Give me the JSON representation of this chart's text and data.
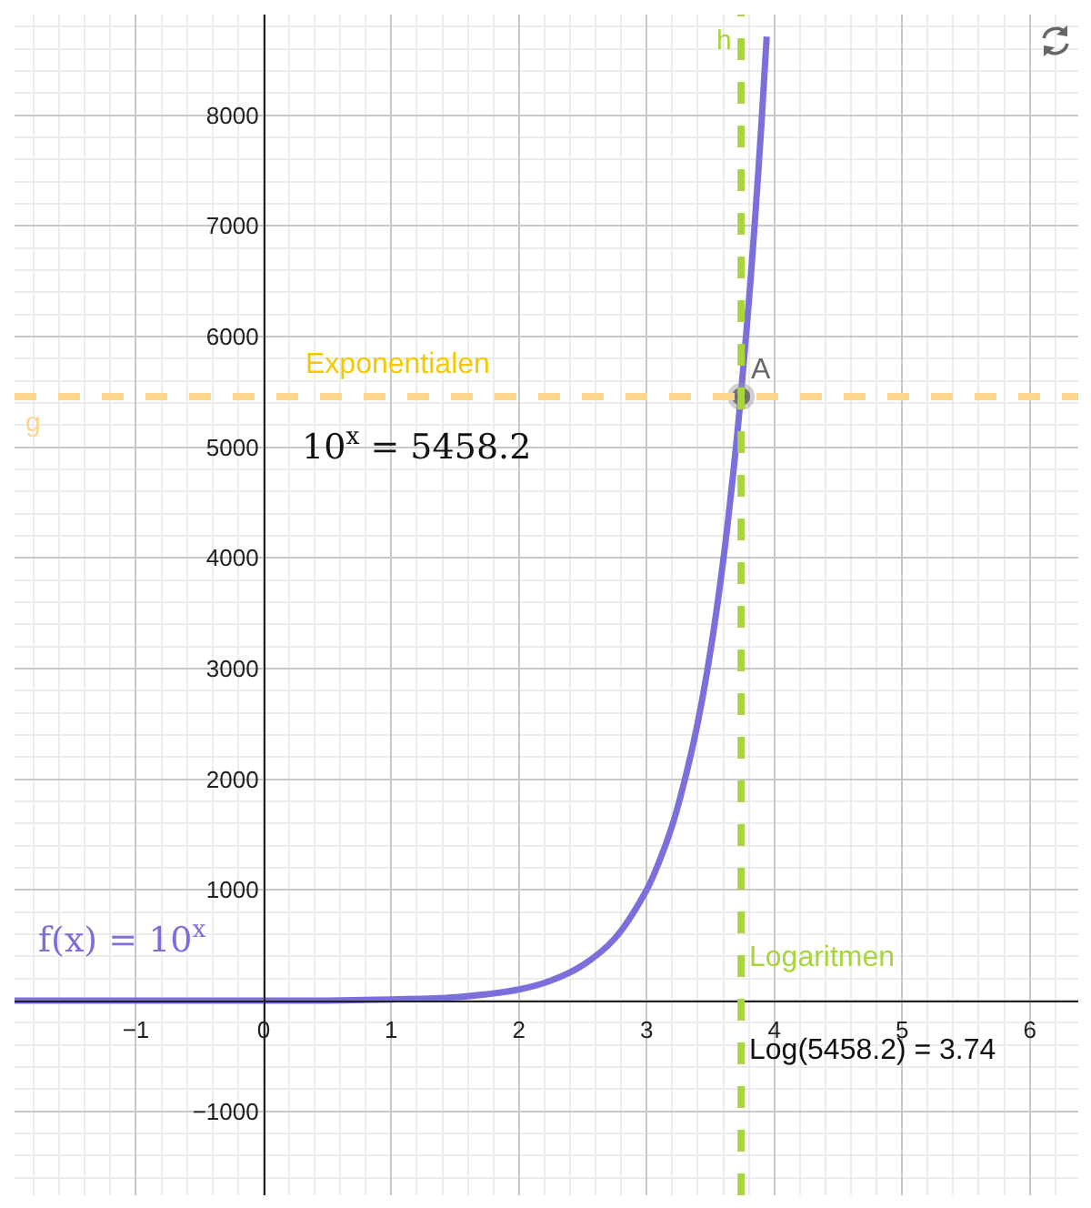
{
  "chart_data": {
    "type": "line",
    "x": [
      -1.95,
      -1,
      0,
      0.5,
      1,
      1.5,
      2,
      2.25,
      2.5,
      2.75,
      3,
      3.1,
      3.2,
      3.3,
      3.4,
      3.5,
      3.6,
      3.7,
      3.74,
      3.8,
      3.85,
      3.9,
      3.94
    ],
    "series": [
      {
        "name": "f(x) = 10$^{x}$",
        "color": "#7b6fdc",
        "values": [
          0,
          0,
          0,
          0,
          10,
          30,
          100,
          180,
          320,
          560,
          1000,
          1260,
          1580,
          2000,
          2510,
          3160,
          3980,
          5010,
          5500,
          6310,
          7080,
          7940,
          8710
        ]
      },
      {
        "type": "scatter",
        "name": "A",
        "color": "#555555",
        "x": [
          3.74
        ],
        "values": [
          5458.2
        ]
      }
    ],
    "xlim": [
      -1.95,
      6.38
    ],
    "ylim": [
      -1760,
      8910
    ],
    "xticks": [
      {
        "value": -1,
        "label": "−1"
      },
      0,
      1,
      2,
      3,
      4,
      5,
      6
    ],
    "yticks": [
      {
        "value": -1000,
        "label": "−1000"
      },
      {
        "value": 0,
        "label": null
      },
      1000,
      2000,
      3000,
      4000,
      5000,
      6000,
      7000,
      8000
    ],
    "grid": true,
    "legend": false,
    "line_style": "solid",
    "ref_lines": [
      {
        "axis": "y",
        "value": 5458.2,
        "label": "g",
        "color": "#fdd58c",
        "line_style": "dashed"
      },
      {
        "axis": "x",
        "value": 3.74,
        "label": "h",
        "color": "#a8d43c",
        "line_style": "dashed"
      }
    ],
    "annotations": [
      "Exponentialen",
      "10$^{x}$ = 5458.2",
      {
        "text": "Logaritmen",
        "x": 3.78,
        "y": 380
      },
      {
        "text": "Log(5458.2) = 3.74",
        "x": 3.78,
        "y": -450
      }
    ]
  }
}
